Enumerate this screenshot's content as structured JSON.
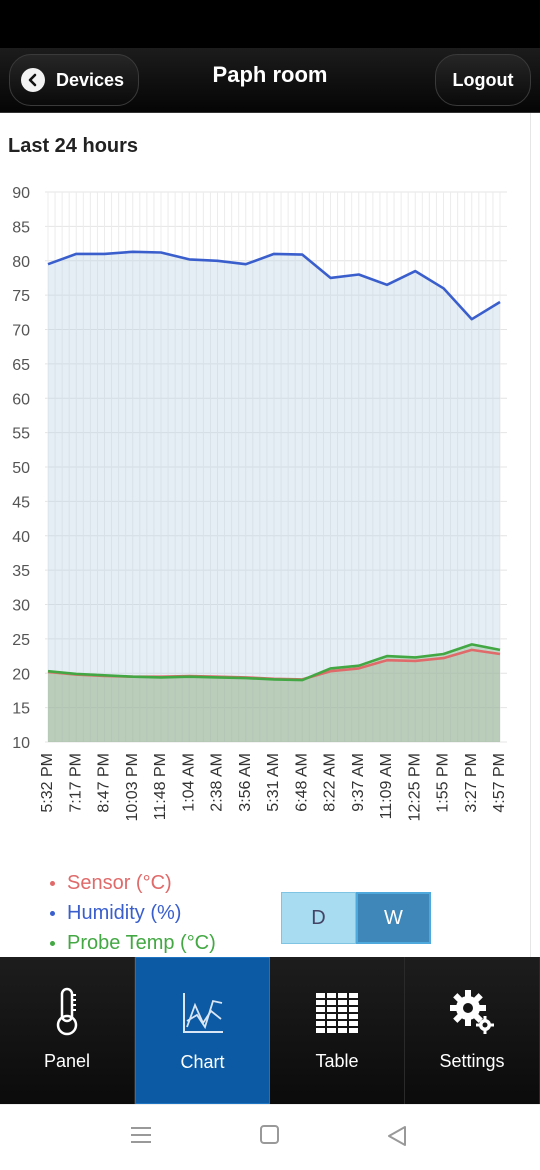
{
  "header": {
    "back_label": "Devices",
    "title": "Paph room",
    "logout_label": "Logout"
  },
  "section_title": "Last 24 hours",
  "chart_data": {
    "type": "area",
    "title": "",
    "xlabel": "",
    "ylabel": "",
    "ylim": [
      10,
      90
    ],
    "yticks": [
      10,
      15,
      20,
      25,
      30,
      35,
      40,
      45,
      50,
      55,
      60,
      65,
      70,
      75,
      80,
      85,
      90
    ],
    "x_labels": [
      "5:32 PM",
      "7:17 PM",
      "8:47 PM",
      "10:03 PM",
      "11:48 PM",
      "1:04 AM",
      "2:38 AM",
      "3:56 AM",
      "5:31 AM",
      "6:48 AM",
      "8:22 AM",
      "9:37 AM",
      "11:09 AM",
      "12:25 PM",
      "1:55 PM",
      "3:27 PM",
      "4:57 PM"
    ],
    "grid": true,
    "series": [
      {
        "name": "Sensor (°C)",
        "color": "#e06a6a",
        "values": [
          20.2,
          19.8,
          19.6,
          19.5,
          19.5,
          19.6,
          19.5,
          19.4,
          19.2,
          19.1,
          20.3,
          20.7,
          21.9,
          21.8,
          22.2,
          23.4,
          22.8
        ]
      },
      {
        "name": "Humidity (%)",
        "color": "#3a5fcd",
        "values": [
          79.5,
          81.0,
          81.0,
          81.3,
          81.2,
          80.2,
          80.0,
          79.5,
          81.0,
          80.9,
          77.5,
          78.0,
          76.5,
          78.5,
          76.0,
          71.5,
          74.0
        ]
      },
      {
        "name": "Probe Temp (°C)",
        "color": "#43a843",
        "values": [
          20.3,
          19.9,
          19.7,
          19.5,
          19.4,
          19.5,
          19.4,
          19.3,
          19.1,
          19.0,
          20.7,
          21.1,
          22.5,
          22.3,
          22.8,
          24.2,
          23.4
        ]
      }
    ]
  },
  "range_toggle": {
    "day_label": "D",
    "week_label": "W",
    "selected": "W"
  },
  "tabbar": {
    "items": [
      {
        "label": "Panel",
        "icon": "thermometer-icon"
      },
      {
        "label": "Chart",
        "icon": "chart-icon",
        "active": true
      },
      {
        "label": "Table",
        "icon": "table-icon"
      },
      {
        "label": "Settings",
        "icon": "gear-icon"
      }
    ]
  },
  "colors": {
    "active_tab": "#0b5aa3",
    "header_bg": "#111111"
  }
}
